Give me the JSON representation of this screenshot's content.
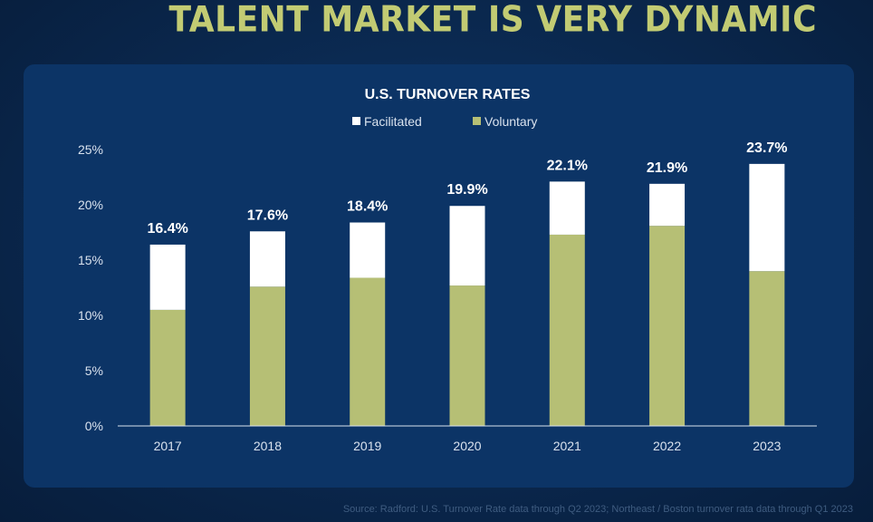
{
  "slide": {
    "title": "TALENT MARKET IS VERY DYNAMIC",
    "source": "Source: Radford: U.S. Turnover Rate data through Q2 2023; Northeast / Boston turnover rata data through Q1 2023"
  },
  "colors": {
    "voluntary": "#b6bf75",
    "facilitated": "#ffffff",
    "title": "#c2cb73",
    "panel": "#0c3466",
    "text": "#ffffff",
    "axis_text": "#d9e2ee"
  },
  "chart_data": {
    "type": "bar",
    "stacked": true,
    "title": "U.S. TURNOVER RATES",
    "categories": [
      "2017",
      "2018",
      "2019",
      "2020",
      "2021",
      "2022",
      "2023"
    ],
    "series": [
      {
        "name": "Voluntary",
        "values": [
          10.5,
          12.6,
          13.4,
          12.7,
          17.3,
          18.1,
          14.0
        ]
      },
      {
        "name": "Facilitated",
        "values": [
          5.9,
          5.0,
          5.0,
          7.2,
          4.8,
          3.8,
          9.7
        ]
      }
    ],
    "totals": [
      16.4,
      17.6,
      18.4,
      19.9,
      22.1,
      21.9,
      23.7
    ],
    "total_labels": [
      "16.4%",
      "17.6%",
      "18.4%",
      "19.9%",
      "22.1%",
      "21.9%",
      "23.7%"
    ],
    "y_ticks": [
      0,
      5,
      10,
      15,
      20,
      25
    ],
    "y_tick_labels": [
      "0%",
      "5%",
      "10%",
      "15%",
      "20%",
      "25%"
    ],
    "ylim": [
      0,
      25
    ],
    "legend": [
      "Facilitated",
      "Voluntary"
    ],
    "legend_position": "top-center",
    "grid": false
  }
}
